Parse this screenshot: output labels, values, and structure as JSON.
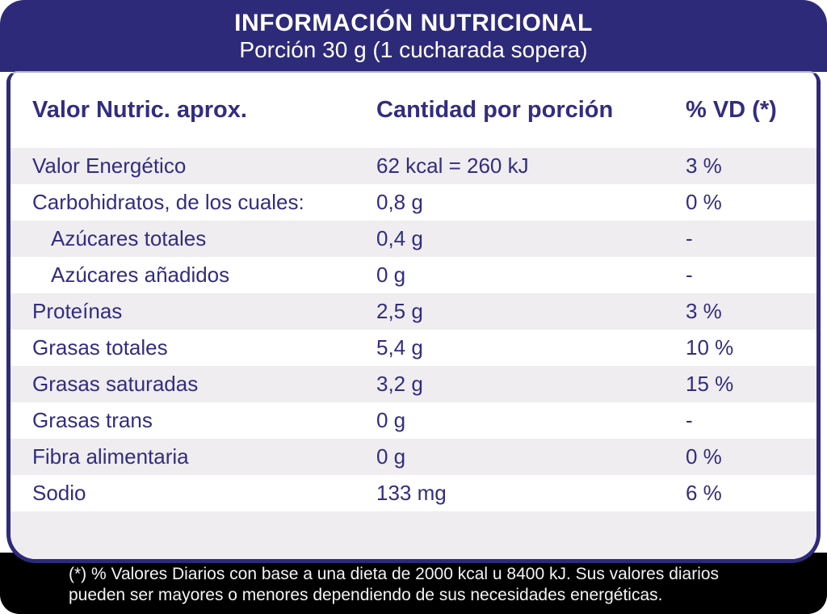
{
  "header": {
    "title": "INFORMACIÓN NUTRICIONAL",
    "subtitle": "Porción 30 g (1 cucharada sopera)"
  },
  "table": {
    "columns": [
      "Valor Nutric. aprox.",
      "Cantidad por porción",
      "% VD (*)"
    ],
    "rows": [
      {
        "label": "Valor Energético",
        "amount": "62 kcal = 260 kJ",
        "vd": "3 %",
        "indent": false
      },
      {
        "label": "Carbohidratos, de los cuales:",
        "amount": "0,8 g",
        "vd": "0 %",
        "indent": false
      },
      {
        "label": "Azúcares totales",
        "amount": "0,4 g",
        "vd": "-",
        "indent": true
      },
      {
        "label": "Azúcares añadidos",
        "amount": "0 g",
        "vd": "-",
        "indent": true
      },
      {
        "label": "Proteínas",
        "amount": "2,5 g",
        "vd": "3 %",
        "indent": false
      },
      {
        "label": "Grasas totales",
        "amount": "5,4 g",
        "vd": "10 %",
        "indent": false
      },
      {
        "label": "Grasas saturadas",
        "amount": "3,2 g",
        "vd": "15 %",
        "indent": false
      },
      {
        "label": "Grasas trans",
        "amount": "0 g",
        "vd": "-",
        "indent": false
      },
      {
        "label": "Fibra alimentaria",
        "amount": "0 g",
        "vd": "0 %",
        "indent": false
      },
      {
        "label": "Sodio",
        "amount": "133 mg",
        "vd": "6 %",
        "indent": false
      }
    ]
  },
  "footnote": {
    "lines": [
      "(*) % Valores Diarios con base a una dieta de 2000 kcal u 8400 kJ. Sus valores diarios",
      "pueden ser mayores o menores dependiendo de sus necesidades energéticas."
    ]
  },
  "colors": {
    "navy_bg": "#2e2a7a",
    "navy_text": "#322d80",
    "row_gray": "#efedef",
    "black": "#000000"
  }
}
